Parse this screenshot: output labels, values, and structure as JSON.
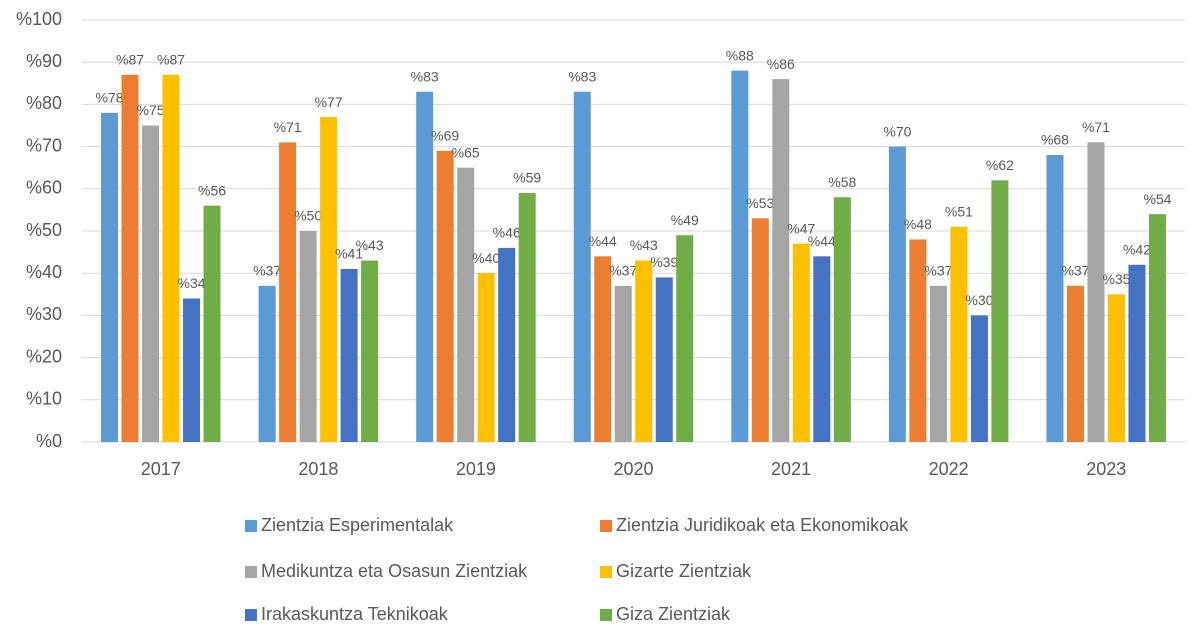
{
  "chart_data": {
    "type": "bar",
    "categories": [
      "2017",
      "2018",
      "2019",
      "2020",
      "2021",
      "2022",
      "2023"
    ],
    "series": [
      {
        "name": "Zientzia Esperimentalak",
        "color": "#5b9bd5",
        "values": [
          78,
          37,
          83,
          83,
          88,
          70,
          68
        ],
        "value_labels": [
          "%78",
          "%37",
          "%83",
          "%83",
          "%88",
          "%70",
          "%68"
        ]
      },
      {
        "name": "Zientzia Juridikoak eta Ekonomikoak",
        "color": "#ed7d31",
        "values": [
          87,
          71,
          69,
          44,
          53,
          48,
          37
        ],
        "value_labels": [
          "%87",
          "%71",
          "%69",
          "%44",
          "%53",
          "%48",
          "%37"
        ]
      },
      {
        "name": "Medikuntza eta Osasun Zientziak",
        "color": "#a5a5a5",
        "values": [
          75,
          50,
          65,
          37,
          86,
          37,
          71
        ],
        "value_labels": [
          "%75",
          "%50",
          "%65",
          "%37",
          "%86",
          "%37",
          "%71"
        ]
      },
      {
        "name": "Gizarte Zientziak",
        "color": "#ffc000",
        "values": [
          87,
          77,
          40,
          43,
          47,
          51,
          35
        ],
        "value_labels": [
          "%87",
          "%77",
          "%40",
          "%43",
          "%47",
          "%51",
          "%35"
        ]
      },
      {
        "name": "Irakaskuntza Teknikoak",
        "color": "#4472c4",
        "values": [
          34,
          41,
          46,
          39,
          44,
          30,
          42
        ],
        "value_labels": [
          "%34",
          "%41",
          "%46",
          "%39",
          "%44",
          "%30",
          "%42"
        ]
      },
      {
        "name": "Giza Zientziak",
        "color": "#70ad47",
        "values": [
          56,
          43,
          59,
          49,
          58,
          62,
          54
        ],
        "value_labels": [
          "%56",
          "%43",
          "%59",
          "%49",
          "%58",
          "%62",
          "%54"
        ]
      }
    ],
    "ylim": [
      0,
      100
    ],
    "yticks": [
      {
        "value": 0,
        "label": "%0"
      },
      {
        "value": 10,
        "label": "%10"
      },
      {
        "value": 20,
        "label": "%20"
      },
      {
        "value": 30,
        "label": "%30"
      },
      {
        "value": 40,
        "label": "%40"
      },
      {
        "value": 50,
        "label": "%50"
      },
      {
        "value": 60,
        "label": "%60"
      },
      {
        "value": 70,
        "label": "%70"
      },
      {
        "value": 80,
        "label": "%80"
      },
      {
        "value": 90,
        "label": "%90"
      },
      {
        "value": 100,
        "label": "%100"
      }
    ],
    "grid": true,
    "legend": "bottom"
  }
}
